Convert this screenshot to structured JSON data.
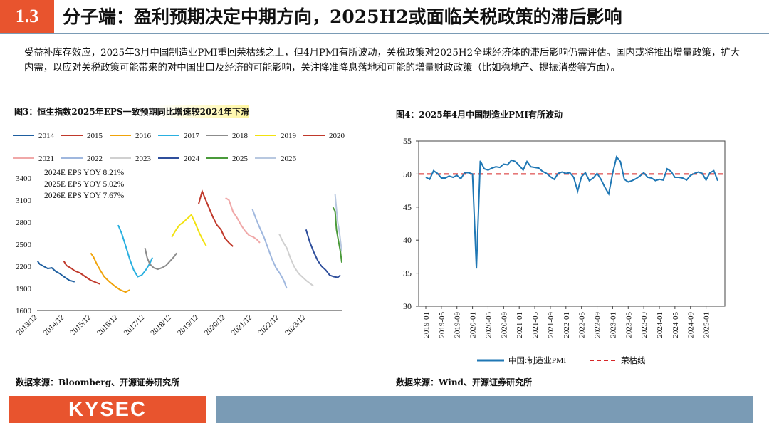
{
  "header": {
    "section_number": "1.3",
    "title": "分子端：盈利预期决定中期方向，2025H2或面临关税政策的滞后影响"
  },
  "paragraph": "受益补库存效应，2025年3月中国制造业PMI重回荣枯线之上，但4月PMI有所波动，关税政策对2025H2全球经济体的滞后影响仍需评估。国内或将推出增量政策，扩大内需，以应对关税政策可能带来的对中国出口及经济的可能影响，关注降准降息落地和可能的增量财政政策（比如稳地产、提振消费等方面）。",
  "figure3": {
    "title": "图3：恒生指数2025年EPS一致预期同比增速较2024年下滑",
    "source": "数据来源：Bloomberg、开源证券研究所"
  },
  "figure4": {
    "title": "图4：2025年4月中国制造业PMI有所波动",
    "source": "数据来源：Wind、开源证券研究所"
  },
  "footer": {
    "logo_text": "KYSEC"
  },
  "colors": {
    "accent": "#e8542e",
    "bar": "#7a9bb5",
    "pmi_line": "#1f77b4",
    "threshold": "#d62728"
  },
  "chart_data": [
    {
      "id": "eps",
      "type": "line",
      "title": "图3：恒生指数2025年EPS一致预期同比增速较2024年下滑",
      "xlabel": "",
      "ylabel": "",
      "ylim": [
        1600,
        3400
      ],
      "yticks": [
        1600,
        1900,
        2200,
        2500,
        2800,
        3100,
        3400
      ],
      "xlim": [
        2013.9,
        2025.25
      ],
      "xticks": [
        {
          "label": "2013/12",
          "x": 2013.92
        },
        {
          "label": "2014/12",
          "x": 2014.92
        },
        {
          "label": "2015/12",
          "x": 2015.92
        },
        {
          "label": "2016/12",
          "x": 2016.92
        },
        {
          "label": "2017/12",
          "x": 2017.92
        },
        {
          "label": "2018/12",
          "x": 2018.92
        },
        {
          "label": "2019/12",
          "x": 2019.92
        },
        {
          "label": "2020/12",
          "x": 2020.92
        },
        {
          "label": "2021/12",
          "x": 2021.92
        },
        {
          "label": "2022/12",
          "x": 2022.92
        },
        {
          "label": "2023/12",
          "x": 2023.92
        }
      ],
      "annotations": [
        "2024E EPS YOY 8.21%",
        "2025E EPS YOY 5.02%",
        "2026E EPS YOY 7.67%"
      ],
      "series": [
        {
          "name": "2014",
          "color": "#1f5fa0",
          "x": [
            2013.92,
            2014.0,
            2014.15,
            2014.3,
            2014.45,
            2014.6,
            2014.75,
            2014.9,
            2015.1,
            2015.3
          ],
          "values": [
            2270,
            2230,
            2200,
            2170,
            2180,
            2130,
            2100,
            2060,
            2010,
            1990
          ]
        },
        {
          "name": "2015",
          "color": "#c0392b",
          "x": [
            2014.9,
            2015.0,
            2015.15,
            2015.3,
            2015.5,
            2015.7,
            2015.9,
            2016.1,
            2016.25
          ],
          "values": [
            2270,
            2210,
            2180,
            2140,
            2110,
            2060,
            2010,
            1980,
            1960
          ]
        },
        {
          "name": "2016",
          "color": "#f0a30a",
          "x": [
            2015.9,
            2016.0,
            2016.1,
            2016.25,
            2016.4,
            2016.6,
            2016.8,
            2017.0,
            2017.2,
            2017.35
          ],
          "values": [
            2380,
            2330,
            2250,
            2150,
            2060,
            1990,
            1930,
            1880,
            1850,
            1880
          ]
        },
        {
          "name": "2017",
          "color": "#2ab0e0",
          "x": [
            2016.92,
            2017.05,
            2017.2,
            2017.35,
            2017.5,
            2017.65,
            2017.8,
            2017.95,
            2018.1,
            2018.2
          ],
          "values": [
            2760,
            2650,
            2480,
            2300,
            2150,
            2060,
            2080,
            2150,
            2240,
            2320
          ]
        },
        {
          "name": "2018",
          "color": "#8c8c8c",
          "x": [
            2017.92,
            2018.0,
            2018.1,
            2018.25,
            2018.4,
            2018.55,
            2018.7,
            2018.85,
            2019.0,
            2019.1
          ],
          "values": [
            2450,
            2320,
            2230,
            2180,
            2160,
            2180,
            2210,
            2270,
            2330,
            2380
          ]
        },
        {
          "name": "2019",
          "color": "#f2e20f",
          "x": [
            2018.92,
            2019.05,
            2019.2,
            2019.35,
            2019.5,
            2019.65,
            2019.8,
            2019.95,
            2020.1,
            2020.2
          ],
          "values": [
            2600,
            2680,
            2760,
            2800,
            2850,
            2900,
            2780,
            2650,
            2540,
            2480
          ]
        },
        {
          "name": "2020",
          "color": "#c0392b",
          "x": [
            2019.92,
            2020.05,
            2020.15,
            2020.3,
            2020.45,
            2020.6,
            2020.75,
            2020.9,
            2021.05,
            2021.2
          ],
          "values": [
            3050,
            3220,
            3130,
            3000,
            2870,
            2760,
            2700,
            2580,
            2520,
            2470
          ]
        },
        {
          "name": "2021",
          "color": "#f0a8a8",
          "x": [
            2020.92,
            2021.05,
            2021.2,
            2021.35,
            2021.5,
            2021.65,
            2021.8,
            2021.95,
            2022.1,
            2022.2
          ],
          "values": [
            3130,
            3100,
            2940,
            2860,
            2760,
            2680,
            2620,
            2600,
            2560,
            2520
          ]
        },
        {
          "name": "2022",
          "color": "#9fb7de",
          "x": [
            2021.92,
            2022.05,
            2022.2,
            2022.35,
            2022.5,
            2022.65,
            2022.8,
            2022.95,
            2023.1,
            2023.2
          ],
          "values": [
            2980,
            2850,
            2720,
            2600,
            2450,
            2300,
            2180,
            2100,
            2000,
            1900
          ]
        },
        {
          "name": "2023",
          "color": "#d0d0d0",
          "x": [
            2022.92,
            2023.05,
            2023.2,
            2023.35,
            2023.5,
            2023.65,
            2023.8,
            2023.95,
            2024.1,
            2024.2
          ],
          "values": [
            2640,
            2540,
            2450,
            2300,
            2180,
            2100,
            2050,
            2000,
            1960,
            1930
          ]
        },
        {
          "name": "2024",
          "color": "#2f4f9c",
          "x": [
            2023.92,
            2024.05,
            2024.2,
            2024.35,
            2024.5,
            2024.65,
            2024.8,
            2024.95,
            2025.1,
            2025.2
          ],
          "values": [
            2700,
            2540,
            2400,
            2280,
            2200,
            2150,
            2080,
            2060,
            2050,
            2080
          ]
        },
        {
          "name": "2025",
          "color": "#4a9a3a",
          "x": [
            2024.92,
            2025.0,
            2025.05,
            2025.1,
            2025.15,
            2025.2,
            2025.25
          ],
          "values": [
            3000,
            2950,
            2700,
            2600,
            2500,
            2400,
            2250
          ]
        },
        {
          "name": "2026",
          "color": "#b8c8e0",
          "x": [
            2025.0,
            2025.05,
            2025.1,
            2025.15,
            2025.2,
            2025.25
          ],
          "values": [
            3180,
            2980,
            2800,
            2700,
            2550,
            2400
          ]
        }
      ]
    },
    {
      "id": "pmi",
      "type": "line",
      "title": "图4：2025年4月中国制造业PMI有所波动",
      "xlabel": "",
      "ylabel": "",
      "ylim": [
        30,
        55
      ],
      "yticks": [
        30,
        35,
        40,
        45,
        50,
        55
      ],
      "xticks": [
        "2019-01",
        "2019-05",
        "2019-09",
        "2020-01",
        "2020-05",
        "2020-09",
        "2021-01",
        "2021-05",
        "2021-09",
        "2022-01",
        "2022-05",
        "2022-09",
        "2023-01",
        "2023-05",
        "2023-09",
        "2024-01",
        "2024-05",
        "2024-09",
        "2025-01"
      ],
      "threshold": 50,
      "legend": [
        "中国:制造业PMI",
        "荣枯线"
      ],
      "series": [
        {
          "name": "中国:制造业PMI",
          "start": "2019-01",
          "values": [
            49.5,
            49.2,
            50.5,
            50.1,
            49.4,
            49.4,
            49.7,
            49.5,
            49.8,
            49.3,
            50.2,
            50.2,
            50.0,
            35.7,
            52.0,
            50.8,
            50.6,
            50.9,
            51.1,
            51.0,
            51.5,
            51.4,
            52.1,
            51.9,
            51.3,
            50.6,
            51.9,
            51.1,
            51.0,
            50.9,
            50.4,
            50.1,
            49.6,
            49.2,
            50.1,
            50.3,
            50.1,
            50.2,
            49.5,
            47.4,
            49.6,
            50.2,
            49.0,
            49.4,
            50.1,
            49.2,
            48.0,
            47.0,
            50.1,
            52.6,
            51.9,
            49.2,
            48.8,
            49.0,
            49.3,
            49.7,
            50.2,
            49.5,
            49.4,
            49.0,
            49.2,
            49.1,
            50.8,
            50.4,
            49.5,
            49.5,
            49.4,
            49.1,
            49.8,
            50.1,
            50.3,
            50.1,
            49.1,
            50.2,
            50.5,
            49.0
          ]
        }
      ]
    }
  ]
}
